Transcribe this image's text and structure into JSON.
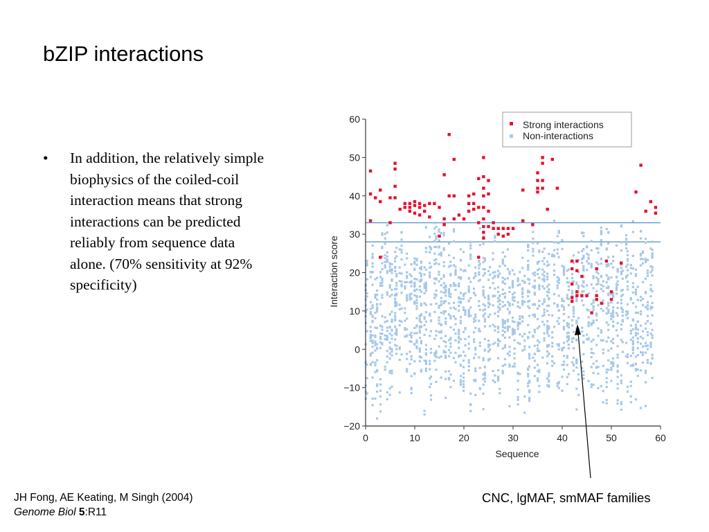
{
  "slide": {
    "title": "bZIP interactions",
    "bullet_marker": "•",
    "bullet_text": "In addition, the relatively simple biophysics of the coiled-coil interaction means that strong interactions can be predicted reliably from sequence data alone. (70% sensitivity at 92% specificity)"
  },
  "citation": {
    "authors": "JH Fong, AE Keating, M Singh (2004)",
    "journal": "Genome Biol",
    "volume": "5",
    "article": ":R11"
  },
  "annotation": {
    "text": "CNC, lgMAF, smMAF families"
  },
  "colors": {
    "strong": "#e8112d",
    "non": "#a7c8e8",
    "threshold": "#5b97cc",
    "axis": "#333333"
  },
  "chart_data": {
    "type": "scatter",
    "xlabel": "Sequence",
    "ylabel": "Interaction score",
    "xlim": [
      0,
      60
    ],
    "ylim": [
      -20,
      60
    ],
    "xticks": [
      0,
      10,
      20,
      30,
      40,
      50,
      60
    ],
    "yticks": [
      -20,
      -10,
      0,
      10,
      20,
      30,
      40,
      50,
      60
    ],
    "tick_labels_x": [
      "0",
      "10",
      "20",
      "30",
      "40",
      "50",
      "60"
    ],
    "tick_labels_y": [
      "−20",
      "−10",
      "0",
      "10",
      "20",
      "30",
      "40",
      "50",
      "60"
    ],
    "thresholds": [
      33,
      28
    ],
    "legend_position": "top-right",
    "series": [
      {
        "name": "Strong interactions",
        "points": [
          [
            1,
            46.5
          ],
          [
            1,
            40.5
          ],
          [
            1,
            33.5
          ],
          [
            2,
            39.5
          ],
          [
            3,
            41.5
          ],
          [
            3,
            38.5
          ],
          [
            3,
            24
          ],
          [
            5,
            39.5
          ],
          [
            5,
            33
          ],
          [
            6,
            48.5
          ],
          [
            6,
            47
          ],
          [
            6,
            42.5
          ],
          [
            6,
            39.5
          ],
          [
            7,
            36.5
          ],
          [
            8,
            38
          ],
          [
            8,
            37
          ],
          [
            9,
            38
          ],
          [
            9,
            37
          ],
          [
            9,
            36
          ],
          [
            10,
            38.5
          ],
          [
            10,
            37.5
          ],
          [
            10,
            35.5
          ],
          [
            11,
            38
          ],
          [
            11,
            37
          ],
          [
            11,
            35
          ],
          [
            12,
            37.5
          ],
          [
            12,
            36
          ],
          [
            13,
            38
          ],
          [
            13,
            34.5
          ],
          [
            14,
            38
          ],
          [
            15,
            37
          ],
          [
            15,
            29.5
          ],
          [
            16,
            45.5
          ],
          [
            16,
            34
          ],
          [
            16,
            32.5
          ],
          [
            17,
            56
          ],
          [
            17,
            40
          ],
          [
            18,
            49.5
          ],
          [
            18,
            40
          ],
          [
            18,
            34
          ],
          [
            19,
            35
          ],
          [
            20,
            34
          ],
          [
            21,
            40
          ],
          [
            21,
            38
          ],
          [
            21,
            36
          ],
          [
            22,
            40.5
          ],
          [
            22,
            38
          ],
          [
            22,
            36.5
          ],
          [
            23,
            44.5
          ],
          [
            23,
            37
          ],
          [
            23,
            33
          ],
          [
            23,
            24
          ],
          [
            24,
            50
          ],
          [
            24,
            45
          ],
          [
            24,
            42
          ],
          [
            24,
            40
          ],
          [
            24,
            37
          ],
          [
            24,
            34
          ],
          [
            24,
            32
          ],
          [
            24,
            30.5
          ],
          [
            24,
            29
          ],
          [
            25,
            44
          ],
          [
            25,
            40.5
          ],
          [
            25,
            36
          ],
          [
            25,
            32
          ],
          [
            26,
            33
          ],
          [
            26,
            31.5
          ],
          [
            27,
            31.5
          ],
          [
            27,
            30
          ],
          [
            28,
            31.5
          ],
          [
            28,
            29.5
          ],
          [
            29,
            31.5
          ],
          [
            29,
            30
          ],
          [
            30,
            31.5
          ],
          [
            32,
            41.5
          ],
          [
            32,
            33.5
          ],
          [
            34,
            32.5
          ],
          [
            35,
            46
          ],
          [
            35,
            44
          ],
          [
            35,
            42
          ],
          [
            35,
            41
          ],
          [
            36,
            50
          ],
          [
            36,
            48.5
          ],
          [
            36,
            44
          ],
          [
            36,
            42
          ],
          [
            37,
            36.5
          ],
          [
            38,
            49.5
          ],
          [
            39,
            42
          ],
          [
            42,
            23
          ],
          [
            42,
            21
          ],
          [
            42,
            17
          ],
          [
            42,
            13.5
          ],
          [
            42,
            12.5
          ],
          [
            43,
            23
          ],
          [
            43,
            20.5
          ],
          [
            43,
            15
          ],
          [
            43,
            14
          ],
          [
            44,
            19
          ],
          [
            44,
            14
          ],
          [
            45,
            14
          ],
          [
            46,
            9.5
          ],
          [
            47,
            21
          ],
          [
            47,
            14
          ],
          [
            47,
            13
          ],
          [
            48,
            12
          ],
          [
            49,
            23
          ],
          [
            50,
            15
          ],
          [
            50,
            13
          ],
          [
            52,
            22.5
          ],
          [
            55,
            41
          ],
          [
            56,
            48
          ],
          [
            57,
            36
          ],
          [
            58,
            38.5
          ],
          [
            59,
            37
          ],
          [
            59,
            35.5
          ]
        ]
      },
      {
        "name": "Non-interactions",
        "points": []
      }
    ]
  }
}
